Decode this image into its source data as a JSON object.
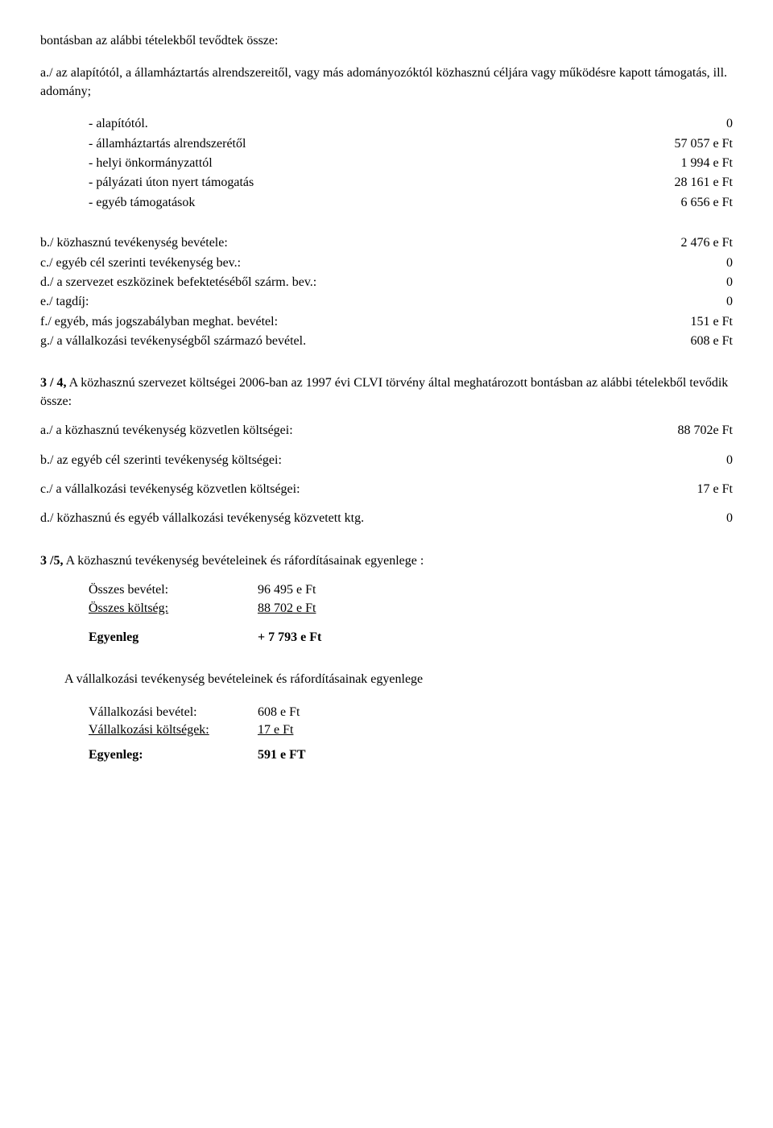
{
  "intro1": "bontásban az alábbi tételekből tevődtek össze:",
  "intro2": "a./  az alapítótól, a államháztartás alrendszereitől, vagy más adományozóktól közhasznú céljára vagy működésre kapott támogatás, ill. adomány;",
  "a_items": [
    {
      "label": "- alapítótól.",
      "value": "0"
    },
    {
      "label": "- államháztartás alrendszerétől",
      "value": "57 057 e Ft"
    },
    {
      "label": "- helyi önkormányzattól",
      "value": "1 994 e Ft"
    },
    {
      "label": "- pályázati úton nyert támogatás",
      "value": "28 161 e Ft"
    },
    {
      "label": "- egyéb támogatások",
      "value": "6 656 e Ft"
    }
  ],
  "bg_items": [
    {
      "label": "b./  közhasznú tevékenység bevétele:",
      "value": "2 476 e Ft"
    },
    {
      "label": "c./  egyéb cél szerinti tevékenység bev.:",
      "value": "0"
    },
    {
      "label": "d./  a szervezet eszközinek befektetéséből szárm. bev.:",
      "value": "0"
    },
    {
      "label": "e./  tagdíj:",
      "value": "0"
    },
    {
      "label": "f./  egyéb, más jogszabályban meghat. bevétel:",
      "value": "151 e Ft"
    },
    {
      "label": "g./  a vállalkozási tevékenységből származó bevétel.",
      "value": "608 e Ft"
    }
  ],
  "section34_heading": "3 / 4,  A közhasznú szervezet költségei 2006-ban az 1997 évi CLVI törvény által meghatározott bontásban az alábbi tételekből tevődik össze:",
  "section34_items": [
    {
      "label": "a./  a közhasznú tevékenység közvetlen költségei:",
      "value": "88 702e Ft"
    },
    {
      "label": "b./ az egyéb cél szerinti tevékenység költségei:",
      "value": "0"
    },
    {
      "label": "c./  a vállalkozási tevékenység közvetlen költségei:",
      "value": "17 e Ft"
    },
    {
      "label": "d./ közhasznú és egyéb vállalkozási tevékenység közvetett ktg.",
      "value": "0"
    }
  ],
  "section35": {
    "heading": "3 /5,      A közhasznú tevékenység bevételeinek és ráfordításainak egyenlege :",
    "rows": [
      {
        "label": "Összes bevétel:",
        "value": "96 495 e Ft",
        "underline": false
      },
      {
        "label": "Összes költség:",
        "value": "88 702 e Ft",
        "underline": true
      }
    ],
    "balance": {
      "label": "Egyenleg",
      "value": "+ 7 793 e Ft"
    }
  },
  "vallalkozasi": {
    "heading": "A vállalkozási tevékenység bevételeinek és ráfordításainak egyenlege",
    "rows": [
      {
        "label": "Vállalkozási  bevétel:",
        "value": "608 e Ft",
        "underline": false
      },
      {
        "label": "Vállalkozási költségek:",
        "value": "17 e Ft",
        "underline": true
      }
    ],
    "balance": {
      "label": "Egyenleg:",
      "value": "591 e  FT"
    }
  }
}
